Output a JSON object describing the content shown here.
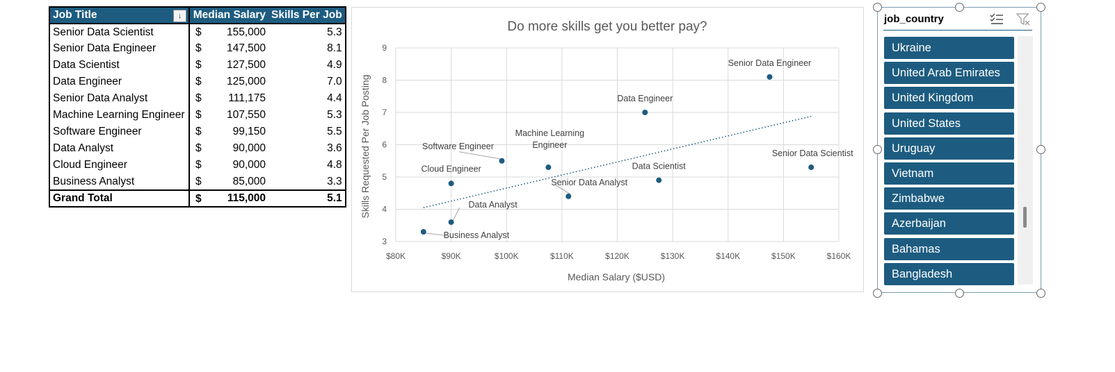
{
  "pivot": {
    "headers": {
      "job_title": "Job Title",
      "median_salary": "Median Salary",
      "skills_per_job": "Skills Per Job",
      "sort_glyph": "↓"
    },
    "currency": "$",
    "rows": [
      {
        "title": "Senior Data Scientist",
        "salary": "155,000",
        "skills": "5.3"
      },
      {
        "title": "Senior Data Engineer",
        "salary": "147,500",
        "skills": "8.1"
      },
      {
        "title": "Data Scientist",
        "salary": "127,500",
        "skills": "4.9"
      },
      {
        "title": "Data Engineer",
        "salary": "125,000",
        "skills": "7.0"
      },
      {
        "title": "Senior Data Analyst",
        "salary": "111,175",
        "skills": "4.4"
      },
      {
        "title": "Machine Learning Engineer",
        "salary": "107,550",
        "skills": "5.3"
      },
      {
        "title": "Software Engineer",
        "salary": "99,150",
        "skills": "5.5"
      },
      {
        "title": "Data Analyst",
        "salary": "90,000",
        "skills": "3.6"
      },
      {
        "title": "Cloud Engineer",
        "salary": "90,000",
        "skills": "4.8"
      },
      {
        "title": "Business Analyst",
        "salary": "85,000",
        "skills": "3.3"
      }
    ],
    "total": {
      "title": "Grand Total",
      "salary": "115,000",
      "skills": "5.1"
    }
  },
  "chart_data": {
    "type": "scatter",
    "title": "Do more skills get you better pay?",
    "xlabel": "Median Salary ($USD)",
    "ylabel": "Skills Requested Per Job Posting",
    "xlim": [
      80000,
      160000
    ],
    "ylim": [
      3,
      9
    ],
    "xticks": [
      80000,
      90000,
      100000,
      110000,
      120000,
      130000,
      140000,
      150000,
      160000
    ],
    "xtick_labels": [
      "$80K",
      "$90K",
      "$100K",
      "$110K",
      "$120K",
      "$130K",
      "$140K",
      "$150K",
      "$160K"
    ],
    "yticks": [
      3,
      4,
      5,
      6,
      7,
      8,
      9
    ],
    "grid": true,
    "point_color": "#1d5c80",
    "trendline": {
      "style": "dotted",
      "x": [
        85000,
        155000
      ],
      "y": [
        4.05,
        6.88
      ]
    },
    "points": [
      {
        "label": "Senior Data Scientist",
        "x": 155000,
        "y": 5.3
      },
      {
        "label": "Senior Data Engineer",
        "x": 147500,
        "y": 8.1
      },
      {
        "label": "Data Scientist",
        "x": 127500,
        "y": 4.9
      },
      {
        "label": "Data Engineer",
        "x": 125000,
        "y": 7.0
      },
      {
        "label": "Senior Data Analyst",
        "x": 111175,
        "y": 4.4
      },
      {
        "label": "Machine Learning Engineer",
        "x": 107550,
        "y": 5.3
      },
      {
        "label": "Software Engineer",
        "x": 99150,
        "y": 5.5
      },
      {
        "label": "Data Analyst",
        "x": 90000,
        "y": 3.6
      },
      {
        "label": "Cloud Engineer",
        "x": 90000,
        "y": 4.8
      },
      {
        "label": "Business Analyst",
        "x": 85000,
        "y": 3.3
      }
    ]
  },
  "slicer": {
    "title": "job_country",
    "icons": {
      "multi_select": "multi-select-icon",
      "clear_filter": "clear-filter-icon"
    },
    "items": [
      "Ukraine",
      "United Arab Emirates",
      "United Kingdom",
      "United States",
      "Uruguay",
      "Vietnam",
      "Zimbabwe",
      "Azerbaijan",
      "Bahamas",
      "Bangladesh"
    ]
  }
}
